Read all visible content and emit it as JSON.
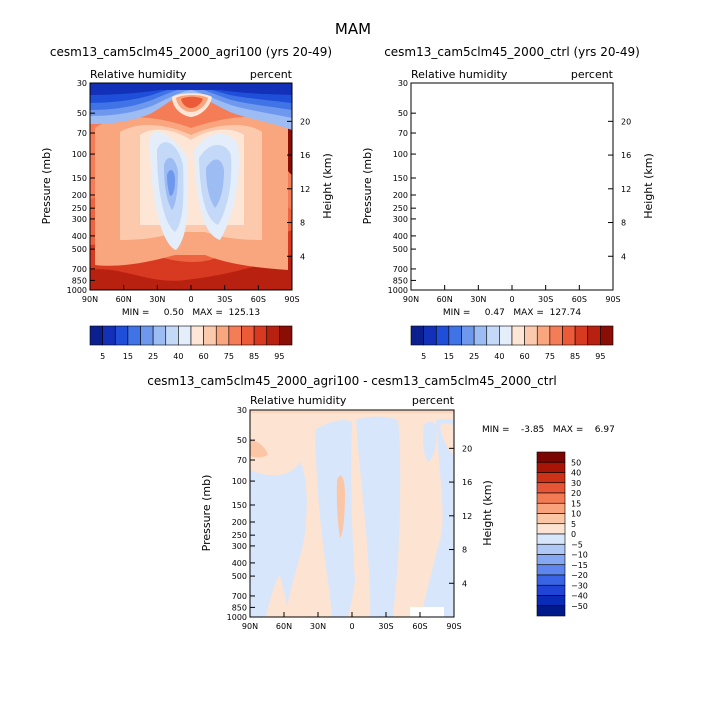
{
  "page_title": "MAM",
  "palettes": {
    "abs": [
      "#0b1f8f",
      "#1330b8",
      "#1f4fd8",
      "#3f73e6",
      "#6e98ee",
      "#9dbcf4",
      "#c4d8f8",
      "#e4eefb",
      "#fde6d6",
      "#fcc9ac",
      "#f9a57e",
      "#f47c56",
      "#ec5a38",
      "#d83a21",
      "#b8210f",
      "#8a0d06"
    ],
    "diff": [
      "#001a8a",
      "#0a2ab8",
      "#1f44d6",
      "#3a64e6",
      "#5e86ee",
      "#86a8f2",
      "#b0c8f6",
      "#d8e6fb",
      "#fde3d2",
      "#fbc6a6",
      "#f8a37b",
      "#f27b54",
      "#e65535",
      "#cd3218",
      "#a81406",
      "#7a0502"
    ]
  },
  "chart_data": [
    {
      "type": "contour",
      "title": "cesm13_cam5clm45_2000_agri100 (yrs 20-49)",
      "left_string": "Relative humidity",
      "right_string": "percent",
      "ylabel": "Pressure (mb)",
      "ylabel_right": "Height (km)",
      "x_ticks": [
        "90N",
        "60N",
        "30N",
        "0",
        "30S",
        "60S",
        "90S"
      ],
      "p_ticks": [
        "30",
        "50",
        "70",
        "100",
        "150",
        "200",
        "250",
        "300",
        "400",
        "500",
        "700",
        "850",
        "1000"
      ],
      "z_ticks": [
        "20",
        "16",
        "12",
        "8",
        "4"
      ],
      "min_max": "MIN =     0.50   MAX =  125.13",
      "contour_levels": [
        "5",
        "10",
        "15",
        "20",
        "25",
        "30",
        "40",
        "50",
        "60",
        "70",
        "75",
        "80",
        "85",
        "90",
        "95"
      ],
      "colorbar_labels": [
        "5",
        "15",
        "25",
        "40",
        "60",
        "75",
        "85",
        "95"
      ]
    },
    {
      "type": "contour",
      "title": "cesm13_cam5clm45_2000_ctrl (yrs 20-49)",
      "left_string": "Relative humidity",
      "right_string": "percent",
      "ylabel": "Pressure (mb)",
      "ylabel_right": "Height (km)",
      "x_ticks": [
        "90N",
        "60N",
        "30N",
        "0",
        "30S",
        "60S",
        "90S"
      ],
      "p_ticks": [
        "30",
        "50",
        "70",
        "100",
        "150",
        "200",
        "250",
        "300",
        "400",
        "500",
        "700",
        "850",
        "1000"
      ],
      "z_ticks": [
        "20",
        "16",
        "12",
        "8",
        "4"
      ],
      "min_max": "MIN =     0.47   MAX =  127.74",
      "contour_levels": [
        "5",
        "10",
        "15",
        "20",
        "25",
        "30",
        "40",
        "50",
        "60",
        "70",
        "75",
        "80",
        "85",
        "90",
        "95"
      ],
      "colorbar_labels": [
        "5",
        "15",
        "25",
        "40",
        "60",
        "75",
        "85",
        "95"
      ]
    },
    {
      "type": "contour",
      "title": "cesm13_cam5clm45_2000_agri100 - cesm13_cam5clm45_2000_ctrl",
      "left_string": "Relative humidity",
      "right_string": "percent",
      "ylabel": "Pressure (mb)",
      "ylabel_right": "Height (km)",
      "x_ticks": [
        "90N",
        "60N",
        "30N",
        "0",
        "30S",
        "60S",
        "90S"
      ],
      "p_ticks": [
        "30",
        "50",
        "70",
        "100",
        "150",
        "200",
        "250",
        "300",
        "400",
        "500",
        "700",
        "850",
        "1000"
      ],
      "z_ticks": [
        "20",
        "16",
        "12",
        "8",
        "4"
      ],
      "min_max": "MIN =    -3.85   MAX =    6.97",
      "contour_levels": [
        "-50",
        "-40",
        "-30",
        "-20",
        "-15",
        "-10",
        "-5",
        "0",
        "5",
        "10",
        "15",
        "20",
        "30",
        "40",
        "50"
      ],
      "colorbar_labels": [
        "50",
        "40",
        "30",
        "20",
        "15",
        "10",
        "5",
        "0",
        "−5",
        "−10",
        "−15",
        "−20",
        "−30",
        "−40",
        "−50"
      ]
    }
  ]
}
